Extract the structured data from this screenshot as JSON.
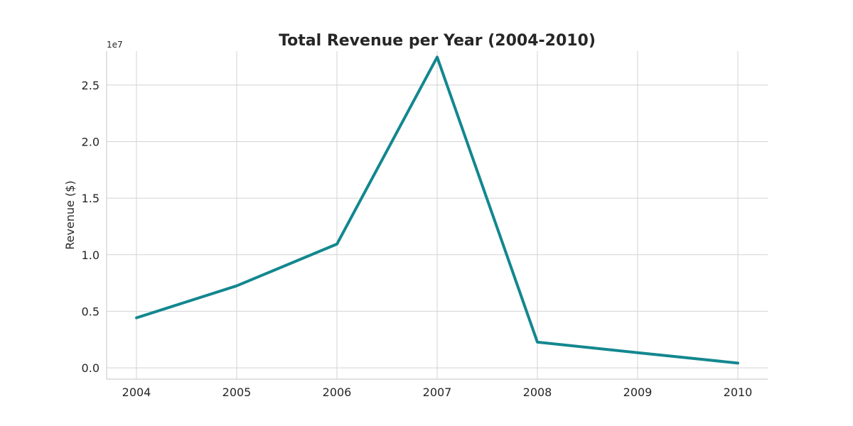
{
  "chart_data": {
    "type": "line",
    "title": "Total Revenue per Year (2004-2010)",
    "xlabel": "",
    "ylabel": "Revenue ($)",
    "y_offset_label": "1e7",
    "x": [
      "2004",
      "2005",
      "2006",
      "2007",
      "2008",
      "2009",
      "2010"
    ],
    "y_tick_labels": [
      "0.0",
      "0.5",
      "1.0",
      "1.5",
      "2.0",
      "2.5"
    ],
    "y_tick_values": [
      0,
      5000000,
      10000000,
      15000000,
      20000000,
      25000000
    ],
    "ylim": [
      -1000000,
      28000000
    ],
    "grid": true,
    "series": [
      {
        "values": [
          4420000,
          7250000,
          10940000,
          27470000,
          2270000,
          1340000,
          420000
        ],
        "color": "#13878f"
      }
    ]
  }
}
